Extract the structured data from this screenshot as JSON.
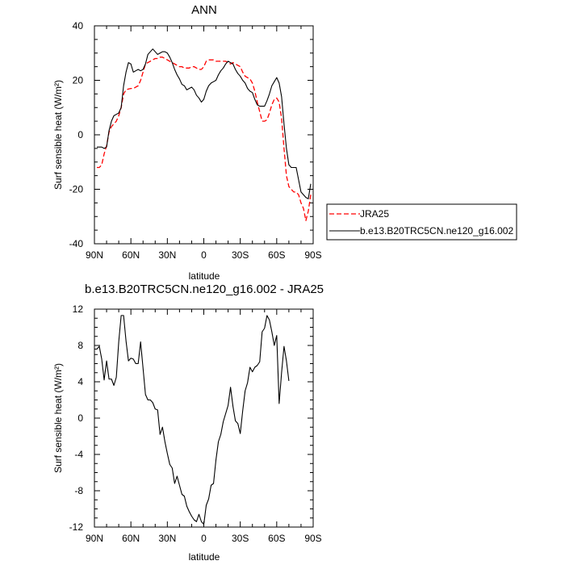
{
  "chart_data": [
    {
      "type": "line",
      "title": "ANN",
      "xlabel": "latitude",
      "ylabel": "Surf sensible heat (W/m²)",
      "xlim": [
        90,
        -90
      ],
      "ylim": [
        -40,
        40
      ],
      "x_ticks": [
        90,
        60,
        30,
        0,
        -30,
        -60,
        -90
      ],
      "x_tick_labels": [
        "90N",
        "60N",
        "30N",
        "0",
        "30S",
        "60S",
        "90S"
      ],
      "y_ticks": [
        -40,
        -20,
        0,
        20,
        40
      ],
      "y_tick_labels": [
        "-40",
        "-20",
        "0",
        "20",
        "40"
      ],
      "legend_position": "right",
      "series": [
        {
          "name": "JRA25",
          "color": "#ff0000",
          "dash": true,
          "points": [
            [
              88,
              -12
            ],
            [
              86,
              -12
            ],
            [
              84,
              -11
            ],
            [
              82,
              -7
            ],
            [
              80,
              -4
            ],
            [
              78,
              1
            ],
            [
              76,
              3
            ],
            [
              74,
              4
            ],
            [
              72,
              5
            ],
            [
              70,
              7
            ],
            [
              68,
              10
            ],
            [
              66,
              15
            ],
            [
              64,
              16.5
            ],
            [
              62,
              16.8
            ],
            [
              60,
              17
            ],
            [
              58,
              17
            ],
            [
              56,
              17.5
            ],
            [
              54,
              18
            ],
            [
              52,
              20
            ],
            [
              50,
              23
            ],
            [
              48,
              26
            ],
            [
              46,
              26.5
            ],
            [
              44,
              27
            ],
            [
              42,
              27.5
            ],
            [
              40,
              28
            ],
            [
              38,
              28
            ],
            [
              36,
              28.5
            ],
            [
              34,
              28.5
            ],
            [
              32,
              28
            ],
            [
              30,
              27.5
            ],
            [
              28,
              27
            ],
            [
              26,
              26.5
            ],
            [
              24,
              26
            ],
            [
              22,
              25.5
            ],
            [
              20,
              25
            ],
            [
              18,
              25
            ],
            [
              16,
              24.5
            ],
            [
              14,
              24.5
            ],
            [
              12,
              24.5
            ],
            [
              10,
              25
            ],
            [
              8,
              25
            ],
            [
              6,
              24.5
            ],
            [
              4,
              24
            ],
            [
              2,
              24
            ],
            [
              0,
              25
            ],
            [
              -2,
              27
            ],
            [
              -4,
              27.5
            ],
            [
              -6,
              27.5
            ],
            [
              -8,
              27.5
            ],
            [
              -10,
              27
            ],
            [
              -12,
              27
            ],
            [
              -14,
              27
            ],
            [
              -16,
              27
            ],
            [
              -18,
              27
            ],
            [
              -20,
              26.5
            ],
            [
              -22,
              26
            ],
            [
              -24,
              26.5
            ],
            [
              -26,
              26
            ],
            [
              -28,
              25.5
            ],
            [
              -30,
              25
            ],
            [
              -32,
              23
            ],
            [
              -34,
              21.5
            ],
            [
              -36,
              21
            ],
            [
              -38,
              20.5
            ],
            [
              -40,
              19
            ],
            [
              -42,
              16
            ],
            [
              -44,
              12
            ],
            [
              -46,
              8.5
            ],
            [
              -48,
              5
            ],
            [
              -50,
              5
            ],
            [
              -52,
              5.5
            ],
            [
              -54,
              8
            ],
            [
              -56,
              11
            ],
            [
              -58,
              13
            ],
            [
              -60,
              13.5
            ],
            [
              -62,
              12
            ],
            [
              -64,
              6
            ],
            [
              -66,
              -5
            ],
            [
              -68,
              -15
            ],
            [
              -70,
              -19
            ],
            [
              -72,
              -20
            ],
            [
              -74,
              -21
            ],
            [
              -76,
              -21
            ],
            [
              -78,
              -22
            ],
            [
              -80,
              -25
            ],
            [
              -82,
              -27
            ],
            [
              -84,
              -31.5
            ],
            [
              -86,
              -28
            ],
            [
              -88,
              -22
            ]
          ]
        },
        {
          "name": "b.e13.B20TRC5CN.ne120_g16.002",
          "color": "#000000",
          "dash": false,
          "points": [
            [
              88,
              -4.5
            ],
            [
              86,
              -4.5
            ],
            [
              84,
              -4.5
            ],
            [
              82,
              -5
            ],
            [
              80,
              -4.5
            ],
            [
              78,
              1.5
            ],
            [
              76,
              5
            ],
            [
              74,
              7
            ],
            [
              72,
              7.5
            ],
            [
              70,
              8
            ],
            [
              68,
              10
            ],
            [
              66,
              18
            ],
            [
              64,
              23
            ],
            [
              62,
              26.5
            ],
            [
              60,
              26
            ],
            [
              58,
              23
            ],
            [
              56,
              23.5
            ],
            [
              54,
              24
            ],
            [
              52,
              23.5
            ],
            [
              50,
              24
            ],
            [
              48,
              26
            ],
            [
              46,
              29.5
            ],
            [
              44,
              30.5
            ],
            [
              42,
              31.5
            ],
            [
              40,
              30.5
            ],
            [
              38,
              29.5
            ],
            [
              36,
              30
            ],
            [
              34,
              30.5
            ],
            [
              32,
              30.5
            ],
            [
              30,
              30
            ],
            [
              28,
              28.5
            ],
            [
              26,
              26.5
            ],
            [
              24,
              24
            ],
            [
              22,
              22
            ],
            [
              20,
              20.5
            ],
            [
              18,
              18.5
            ],
            [
              16,
              18
            ],
            [
              14,
              16.5
            ],
            [
              12,
              17
            ],
            [
              10,
              17.5
            ],
            [
              8,
              16.5
            ],
            [
              6,
              14.5
            ],
            [
              4,
              13.5
            ],
            [
              2,
              12
            ],
            [
              0,
              13
            ],
            [
              -2,
              16
            ],
            [
              -4,
              18
            ],
            [
              -6,
              19
            ],
            [
              -8,
              19.5
            ],
            [
              -10,
              20
            ],
            [
              -12,
              22
            ],
            [
              -14,
              23.5
            ],
            [
              -16,
              24.5
            ],
            [
              -18,
              26
            ],
            [
              -20,
              27
            ],
            [
              -22,
              26.5
            ],
            [
              -24,
              26
            ],
            [
              -26,
              24
            ],
            [
              -28,
              22.5
            ],
            [
              -30,
              21.5
            ],
            [
              -32,
              20
            ],
            [
              -34,
              19
            ],
            [
              -36,
              17
            ],
            [
              -38,
              16
            ],
            [
              -40,
              15.5
            ],
            [
              -42,
              13
            ],
            [
              -44,
              11
            ],
            [
              -46,
              10.5
            ],
            [
              -48,
              10.5
            ],
            [
              -50,
              10.5
            ],
            [
              -52,
              12.5
            ],
            [
              -54,
              15
            ],
            [
              -56,
              18
            ],
            [
              -58,
              19.5
            ],
            [
              -60,
              21
            ],
            [
              -62,
              19
            ],
            [
              -64,
              14
            ],
            [
              -66,
              4
            ],
            [
              -68,
              -5
            ],
            [
              -70,
              -11
            ],
            [
              -72,
              -12
            ],
            [
              -74,
              -12
            ],
            [
              -76,
              -12
            ],
            [
              -78,
              -16.5
            ],
            [
              -80,
              -21
            ],
            [
              -82,
              -22
            ],
            [
              -84,
              -23
            ],
            [
              -86,
              -23.5
            ],
            [
              -88,
              -18
            ]
          ]
        }
      ]
    },
    {
      "type": "line",
      "title": "b.e13.B20TRC5CN.ne120_g16.002 - JRA25",
      "xlabel": "latitude",
      "ylabel": "Surf sensible heat (W/m²)",
      "xlim": [
        90,
        -90
      ],
      "ylim": [
        -12,
        12
      ],
      "x_ticks": [
        90,
        60,
        30,
        0,
        -30,
        -60,
        -90
      ],
      "x_tick_labels": [
        "90N",
        "60N",
        "30N",
        "0",
        "30S",
        "60S",
        "90S"
      ],
      "y_ticks": [
        -12,
        -8,
        -4,
        0,
        4,
        8,
        12
      ],
      "y_tick_labels": [
        "-12",
        "-8",
        "-4",
        "0",
        "4",
        "8",
        "12"
      ],
      "series": [
        {
          "color": "#000000",
          "dash": false,
          "points": [
            [
              90,
              7.6
            ],
            [
              88,
              7.6
            ],
            [
              86,
              7.9
            ],
            [
              84,
              6.5
            ],
            [
              82,
              4.2
            ],
            [
              80,
              6.3
            ],
            [
              78,
              4.3
            ],
            [
              76,
              4.3
            ],
            [
              74,
              3.6
            ],
            [
              72,
              4.5
            ],
            [
              70,
              8.4
            ],
            [
              68,
              11.3
            ],
            [
              66,
              11.3
            ],
            [
              64,
              8.5
            ],
            [
              62,
              6.3
            ],
            [
              60,
              6.6
            ],
            [
              58,
              6.5
            ],
            [
              56,
              6.0
            ],
            [
              54,
              6.0
            ],
            [
              52,
              8.4
            ],
            [
              50,
              5.5
            ],
            [
              48,
              2.6
            ],
            [
              46,
              2.0
            ],
            [
              44,
              2.0
            ],
            [
              42,
              1.7
            ],
            [
              40,
              1.0
            ],
            [
              38,
              0.9
            ],
            [
              36,
              -1.8
            ],
            [
              34,
              -1.0
            ],
            [
              32,
              -2.6
            ],
            [
              30,
              -3.9
            ],
            [
              28,
              -5.1
            ],
            [
              26,
              -5.5
            ],
            [
              24,
              -7.2
            ],
            [
              22,
              -6.4
            ],
            [
              20,
              -7.4
            ],
            [
              18,
              -8.4
            ],
            [
              16,
              -8.6
            ],
            [
              14,
              -9.7
            ],
            [
              12,
              -10.3
            ],
            [
              10,
              -10.8
            ],
            [
              8,
              -11.2
            ],
            [
              6,
              -11.4
            ],
            [
              4,
              -10.6
            ],
            [
              2,
              -11.4
            ],
            [
              0,
              -11.7
            ],
            [
              -2,
              -9.6
            ],
            [
              -4,
              -8.9
            ],
            [
              -6,
              -7.4
            ],
            [
              -8,
              -7.2
            ],
            [
              -10,
              -4.6
            ],
            [
              -12,
              -2.6
            ],
            [
              -14,
              -1.8
            ],
            [
              -16,
              -0.4
            ],
            [
              -18,
              0.5
            ],
            [
              -20,
              1.4
            ],
            [
              -22,
              3.4
            ],
            [
              -24,
              1.3
            ],
            [
              -26,
              -0.3
            ],
            [
              -28,
              -0.6
            ],
            [
              -30,
              -1.7
            ],
            [
              -32,
              0.8
            ],
            [
              -34,
              3.0
            ],
            [
              -36,
              3.9
            ],
            [
              -38,
              5.6
            ],
            [
              -40,
              5.1
            ],
            [
              -42,
              5.6
            ],
            [
              -44,
              5.8
            ],
            [
              -46,
              6.2
            ],
            [
              -48,
              9.5
            ],
            [
              -50,
              9.9
            ],
            [
              -52,
              11.3
            ],
            [
              -54,
              10.8
            ],
            [
              -56,
              9.5
            ],
            [
              -58,
              8.0
            ],
            [
              -60,
              9.1
            ],
            [
              -62,
              1.6
            ],
            [
              -64,
              5.0
            ],
            [
              -66,
              7.9
            ],
            [
              -68,
              6.3
            ],
            [
              -70,
              4.1
            ]
          ]
        }
      ]
    }
  ]
}
